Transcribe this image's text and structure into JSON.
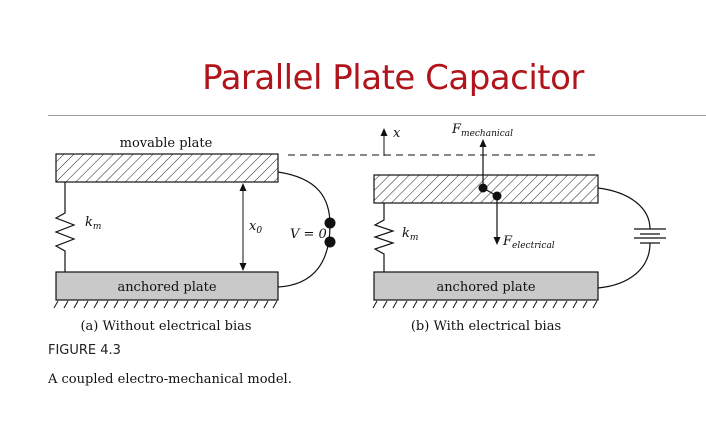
{
  "slide": {
    "title": "Parallel Plate Capacitor"
  },
  "figure": {
    "label": "FIGURE 4.3",
    "caption": "A coupled electro-mechanical model.",
    "panel_a": {
      "movable_plate_label": "movable plate",
      "spring_label": "k",
      "spring_subscript": "m",
      "gap_label": "x",
      "gap_subscript": "0",
      "voltage_label": "V = 0",
      "anchored_plate_label": "anchored plate",
      "caption": "(a) Without electrical bias"
    },
    "panel_b": {
      "axis_label": "x",
      "force_mech_label": "F",
      "force_mech_subscript": "mechanical",
      "force_elec_label": "F",
      "force_elec_subscript": "electrical",
      "spring_label": "k",
      "spring_subscript": "m",
      "anchored_plate_label": "anchored plate",
      "caption": "(b) With electrical bias"
    }
  }
}
